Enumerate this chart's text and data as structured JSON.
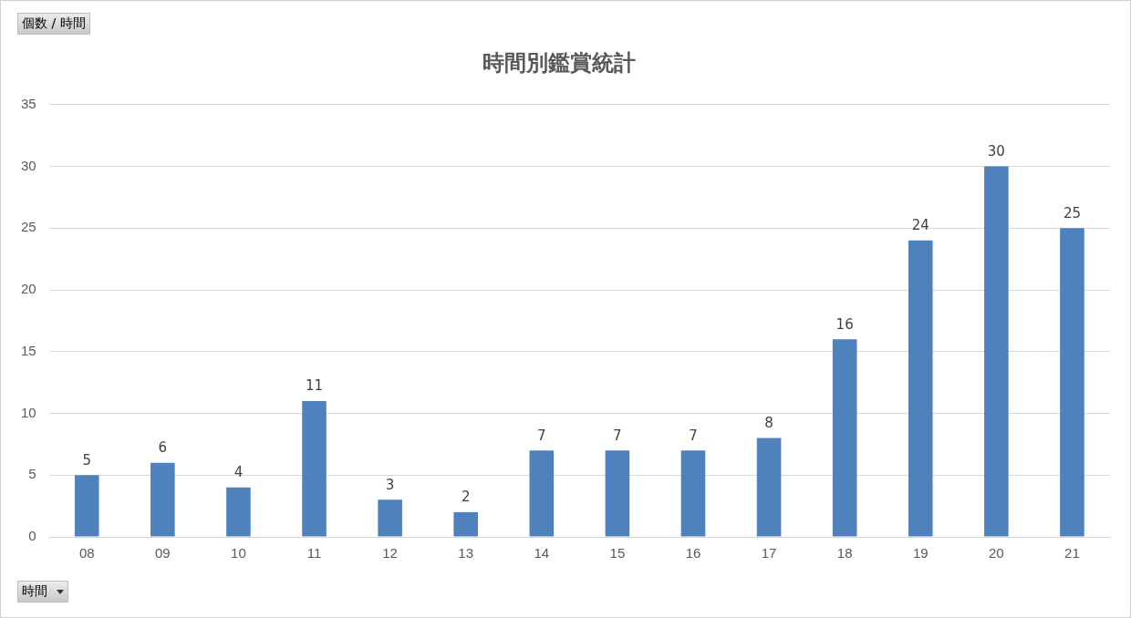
{
  "chart_data": {
    "type": "bar",
    "title": "時間別鑑賞統計",
    "annotations": [
      "個数 / 時間",
      "時間"
    ],
    "categories": [
      "08",
      "09",
      "10",
      "11",
      "12",
      "13",
      "14",
      "15",
      "16",
      "17",
      "18",
      "19",
      "20",
      "21"
    ],
    "values": [
      5,
      6,
      4,
      11,
      3,
      2,
      7,
      7,
      7,
      8,
      16,
      24,
      30,
      25
    ],
    "color": "#4f81bd",
    "ylim": [
      0,
      35
    ],
    "yticks": [
      0,
      5,
      10,
      15,
      20,
      25,
      30,
      35
    ],
    "grid": "y",
    "data_labels": true,
    "legend": false
  }
}
